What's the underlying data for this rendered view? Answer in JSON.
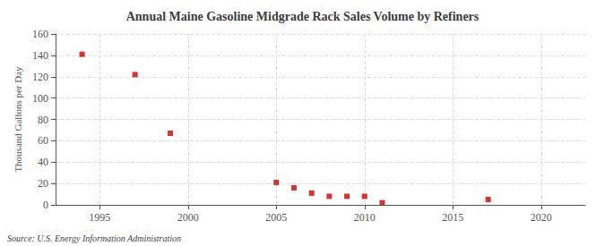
{
  "chart_data": {
    "type": "scatter",
    "title": "Annual Maine Gasoline Midgrade Rack Sales Volume by Refiners",
    "ylabel": "Thousand Gallons per Day",
    "source": "Source: U.S. Energy Information Administration",
    "x": [
      1994,
      1997,
      1999,
      2005,
      2006,
      2007,
      2008,
      2009,
      2010,
      2011,
      2017
    ],
    "values": [
      141,
      122,
      67,
      21,
      16,
      11,
      8,
      8,
      8,
      2,
      5
    ],
    "color": "#cc0000",
    "marker": "square",
    "xlim": [
      1992.5,
      2022.5
    ],
    "xticks": [
      1995,
      2000,
      2005,
      2010,
      2015,
      2020
    ],
    "ylim": [
      0,
      160
    ],
    "yticks": [
      0,
      20,
      40,
      60,
      80,
      100,
      120,
      140,
      160
    ],
    "grid": true
  }
}
